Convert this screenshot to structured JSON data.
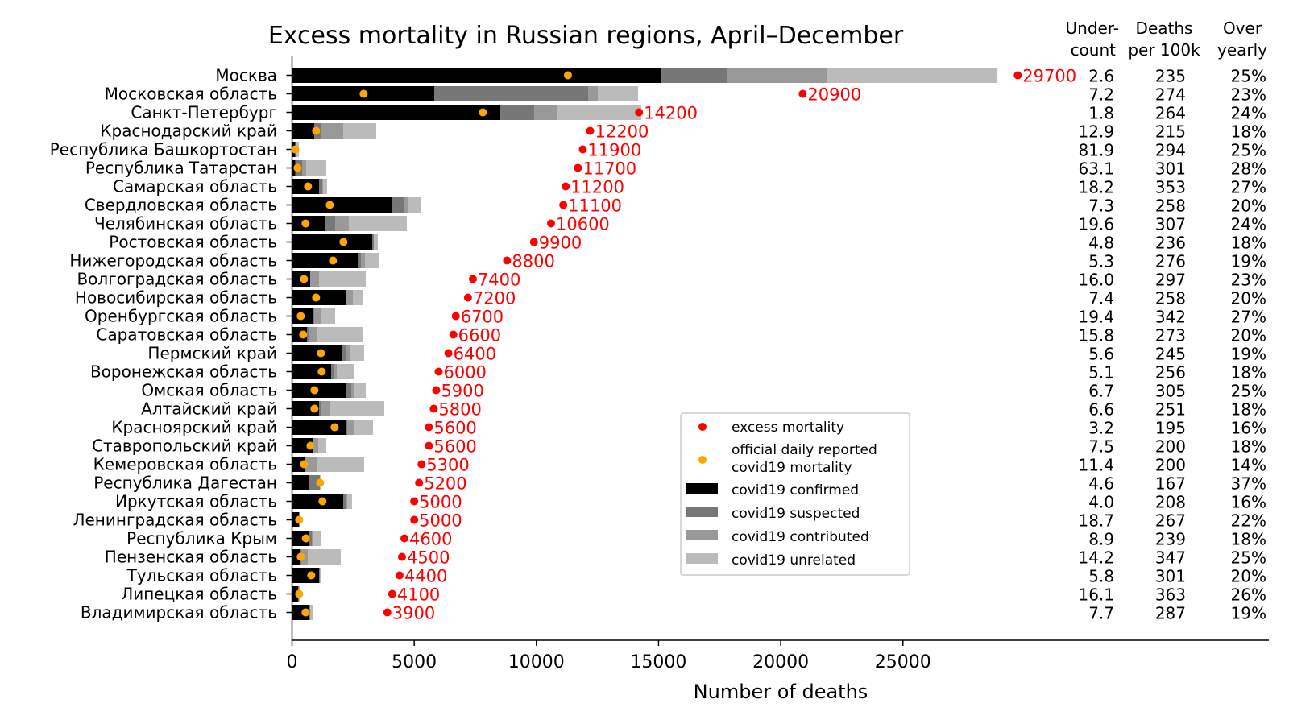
{
  "chart_data": {
    "type": "bar",
    "stacked": true,
    "orientation": "horizontal",
    "title": "Excess mortality in Russian regions, April–December",
    "xlabel": "Number of deaths",
    "ylabel": "",
    "xlim": [
      0,
      30000
    ],
    "xticks": [
      0,
      5000,
      10000,
      15000,
      20000,
      25000
    ],
    "grid": false,
    "legend_position": "lower-center",
    "legend": {
      "excess": "excess mortality",
      "official_line1": "official daily reported",
      "official_line2": "covid19 mortality",
      "confirmed": "covid19 confirmed",
      "suspected": "covid19 suspected",
      "contributed": "covid19 contributed",
      "unrelated": "covid19 unrelated"
    },
    "colors": {
      "confirmed": "#000000",
      "suspected": "#777777",
      "contributed": "#999999",
      "unrelated": "#bbbbbb",
      "excess": "#ff0000",
      "official": "#ffa500"
    },
    "table_headers": {
      "undercount_1": "Under-",
      "undercount_2": "count",
      "per100k_1": "Deaths",
      "per100k_2": "per 100k",
      "over_1": "Over",
      "over_2": "yearly"
    },
    "regions": [
      {
        "name": "Москва",
        "excess": 29700,
        "official": 11290,
        "confirmed": 15085,
        "suspected": 2705,
        "contributed": 4090,
        "unrelated": 6990,
        "undercount": "2.6",
        "per100k": "235",
        "over": "25%"
      },
      {
        "name": "Московская область",
        "excess": 20900,
        "official": 2929,
        "confirmed": 5819,
        "suspected": 6298,
        "contributed": 395,
        "unrelated": 1648,
        "undercount": "7.2",
        "per100k": "274",
        "over": "23%"
      },
      {
        "name": "Санкт-Петербург",
        "excess": 14200,
        "official": 7808,
        "confirmed": 8523,
        "suspected": 1384,
        "contributed": 957,
        "unrelated": 3429,
        "undercount": "1.8",
        "per100k": "264",
        "over": "24%"
      },
      {
        "name": "Краснодарский край",
        "excess": 12200,
        "official": 984,
        "confirmed": 907,
        "suspected": 263,
        "contributed": 924,
        "unrelated": 1351,
        "undercount": "12.9",
        "per100k": "215",
        "over": "18%"
      },
      {
        "name": "Республика Башкортостан",
        "excess": 11900,
        "official": 130,
        "confirmed": 137,
        "suspected": 0,
        "contributed": 30,
        "unrelated": 113,
        "undercount": "81.9",
        "per100k": "294",
        "over": "25%"
      },
      {
        "name": "Республика Татарстан",
        "excess": 11700,
        "official": 225,
        "confirmed": 137,
        "suspected": 275,
        "contributed": 165,
        "unrelated": 824,
        "undercount": "63.1",
        "per100k": "301",
        "over": "28%"
      },
      {
        "name": "Самарская область",
        "excess": 11200,
        "official": 654,
        "confirmed": 1104,
        "suspected": 155,
        "contributed": 0,
        "unrelated": 175,
        "undercount": "18.2",
        "per100k": "353",
        "over": "27%"
      },
      {
        "name": "Свердловская область",
        "excess": 11100,
        "official": 1544,
        "confirmed": 4072,
        "suspected": 527,
        "contributed": 132,
        "unrelated": 528,
        "undercount": "7.3",
        "per100k": "258",
        "over": "20%"
      },
      {
        "name": "Челябинская область",
        "excess": 10600,
        "official": 554,
        "confirmed": 1335,
        "suspected": 429,
        "contributed": 560,
        "unrelated": 2374,
        "undercount": "19.6",
        "per100k": "307",
        "over": "24%"
      },
      {
        "name": "Ростовская область",
        "excess": 9900,
        "official": 2104,
        "confirmed": 3280,
        "suspected": 66,
        "contributed": 0,
        "unrelated": 165,
        "undercount": "4.8",
        "per100k": "236",
        "over": "18%"
      },
      {
        "name": "Нижегородская область",
        "excess": 8800,
        "official": 1676,
        "confirmed": 2698,
        "suspected": 121,
        "contributed": 165,
        "unrelated": 560,
        "undercount": "5.3",
        "per100k": "276",
        "over": "19%"
      },
      {
        "name": "Волгоградская область",
        "excess": 7400,
        "official": 489,
        "confirmed": 742,
        "suspected": 0,
        "contributed": 362,
        "unrelated": 1913,
        "undercount": "16.0",
        "per100k": "297",
        "over": "23%"
      },
      {
        "name": "Новосибирская область",
        "excess": 7200,
        "official": 984,
        "confirmed": 2193,
        "suspected": 0,
        "contributed": 296,
        "unrelated": 429,
        "undercount": "7.4",
        "per100k": "258",
        "over": "20%"
      },
      {
        "name": "Оренбургская область",
        "excess": 6700,
        "official": 357,
        "confirmed": 874,
        "suspected": 33,
        "contributed": 296,
        "unrelated": 561,
        "undercount": "19.4",
        "per100k": "342",
        "over": "27%"
      },
      {
        "name": "Саратовская область",
        "excess": 6600,
        "official": 456,
        "confirmed": 610,
        "suspected": 77,
        "contributed": 352,
        "unrelated": 1879,
        "undercount": "15.8",
        "per100k": "273",
        "over": "20%"
      },
      {
        "name": "Пермский край",
        "excess": 6400,
        "official": 1181,
        "confirmed": 2028,
        "suspected": 165,
        "contributed": 164,
        "unrelated": 594,
        "undercount": "5.6",
        "per100k": "245",
        "over": "19%"
      },
      {
        "name": "Воронежская область",
        "excess": 6000,
        "official": 1214,
        "confirmed": 1599,
        "suspected": 132,
        "contributed": 110,
        "unrelated": 681,
        "undercount": "5.1",
        "per100k": "256",
        "over": "18%"
      },
      {
        "name": "Омская область",
        "excess": 5900,
        "official": 918,
        "confirmed": 2193,
        "suspected": 230,
        "contributed": 99,
        "unrelated": 495,
        "undercount": "6.7",
        "per100k": "305",
        "over": "25%"
      },
      {
        "name": "Алтайский край",
        "excess": 5800,
        "official": 918,
        "confirmed": 1104,
        "suspected": 99,
        "contributed": 363,
        "unrelated": 2209,
        "undercount": "6.6",
        "per100k": "251",
        "over": "18%"
      },
      {
        "name": "Красноярский край",
        "excess": 5600,
        "official": 1742,
        "confirmed": 2225,
        "suspected": 33,
        "contributed": 264,
        "unrelated": 791,
        "undercount": "3.2",
        "per100k": "195",
        "over": "16%"
      },
      {
        "name": "Ставропольский край",
        "excess": 5600,
        "official": 753,
        "confirmed": 841,
        "suspected": 33,
        "contributed": 198,
        "unrelated": 329,
        "undercount": "7.5",
        "per100k": "200",
        "over": "18%"
      },
      {
        "name": "Кемеровская область",
        "excess": 5300,
        "official": 489,
        "confirmed": 511,
        "suspected": 33,
        "contributed": 462,
        "unrelated": 1945,
        "undercount": "11.4",
        "per100k": "200",
        "over": "14%"
      },
      {
        "name": "Республика Дагестан",
        "excess": 5200,
        "official": 1148,
        "confirmed": 676,
        "suspected": 461,
        "contributed": 0,
        "unrelated": 33,
        "undercount": "4.6",
        "per100k": "167",
        "over": "37%"
      },
      {
        "name": "Иркутская область",
        "excess": 5000,
        "official": 1247,
        "confirmed": 2094,
        "suspected": 131,
        "contributed": 33,
        "unrelated": 198,
        "undercount": "4.0",
        "per100k": "208",
        "over": "16%"
      },
      {
        "name": "Ленинградская область",
        "excess": 5000,
        "official": 291,
        "confirmed": 280,
        "suspected": 33,
        "contributed": 0,
        "unrelated": 33,
        "undercount": "18.7",
        "per100k": "267",
        "over": "22%"
      },
      {
        "name": "Республика Крым",
        "excess": 4600,
        "official": 566,
        "confirmed": 676,
        "suspected": 132,
        "contributed": 33,
        "unrelated": 362,
        "undercount": "8.9",
        "per100k": "239",
        "over": "18%"
      },
      {
        "name": "Пензенская область",
        "excess": 4500,
        "official": 357,
        "confirmed": 346,
        "suspected": 33,
        "contributed": 264,
        "unrelated": 1352,
        "undercount": "14.2",
        "per100k": "347",
        "over": "25%"
      },
      {
        "name": "Тульская область",
        "excess": 4400,
        "official": 786,
        "confirmed": 1104,
        "suspected": 33,
        "contributed": 0,
        "unrelated": 66,
        "undercount": "5.8",
        "per100k": "301",
        "over": "20%"
      },
      {
        "name": "Липецкая область",
        "excess": 4100,
        "official": 291,
        "confirmed": 247,
        "suspected": 33,
        "contributed": 0,
        "unrelated": 33,
        "undercount": "16.1",
        "per100k": "363",
        "over": "26%"
      },
      {
        "name": "Владимирская область",
        "excess": 3900,
        "official": 554,
        "confirmed": 676,
        "suspected": 66,
        "contributed": 0,
        "unrelated": 132,
        "undercount": "7.7",
        "per100k": "287",
        "over": "19%"
      }
    ]
  }
}
